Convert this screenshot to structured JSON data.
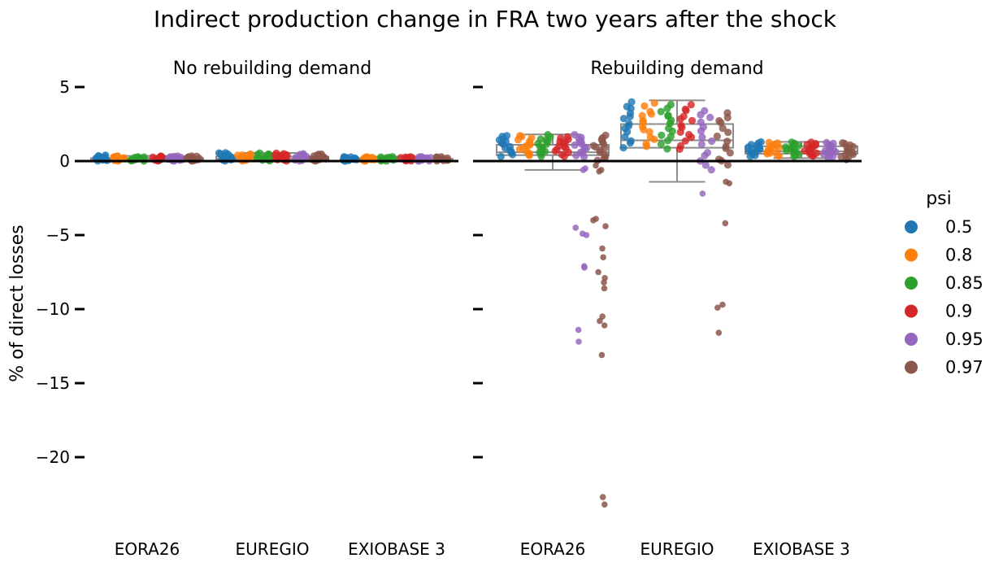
{
  "chart_data": {
    "type": "scatter",
    "title": "Indirect production change in FRA two years after the shock",
    "ylabel": "% of direct losses",
    "ylim": [
      -24.5,
      6
    ],
    "yticks": [
      5,
      0,
      -5,
      -10,
      -15,
      -20
    ],
    "ytick_labels": [
      "5",
      "0",
      "−5",
      "−10",
      "−15",
      "−20"
    ],
    "categories": [
      "EORA26",
      "EUREGIO",
      "EXIOBASE 3"
    ],
    "legend": {
      "title": "psi",
      "placement": "right",
      "entries": [
        {
          "label": "0.5",
          "color": "#1f77b4"
        },
        {
          "label": "0.8",
          "color": "#ff7f0e"
        },
        {
          "label": "0.85",
          "color": "#2ca02c"
        },
        {
          "label": "0.9",
          "color": "#d62728"
        },
        {
          "label": "0.95",
          "color": "#9467bd"
        },
        {
          "label": "0.97",
          "color": "#8c564b"
        }
      ]
    },
    "panels": [
      {
        "title": "No rebuilding demand",
        "groups": {
          "EORA26": {
            "box": {
              "whislo": 0,
              "q1": 0.02,
              "median": 0.1,
              "q3": 0.2,
              "whishi": 0.35
            },
            "series": {
              "0.5": {
                "min": 0.0,
                "max": 0.4
              },
              "0.8": {
                "min": 0.0,
                "max": 0.35
              },
              "0.85": {
                "min": 0.0,
                "max": 0.3
              },
              "0.9": {
                "min": 0.0,
                "max": 0.35
              },
              "0.95": {
                "min": 0.0,
                "max": 0.35
              },
              "0.97": {
                "min": 0.0,
                "max": 0.35
              }
            }
          },
          "EUREGIO": {
            "box": {
              "whislo": 0,
              "q1": 0.05,
              "median": 0.15,
              "q3": 0.3,
              "whishi": 0.55
            },
            "series": {
              "0.5": {
                "min": 0.0,
                "max": 0.6
              },
              "0.8": {
                "min": 0.0,
                "max": 0.5
              },
              "0.85": {
                "min": 0.0,
                "max": 0.55
              },
              "0.9": {
                "min": 0.0,
                "max": 0.55
              },
              "0.95": {
                "min": 0.0,
                "max": 0.5
              },
              "0.97": {
                "min": 0.0,
                "max": 0.5
              }
            }
          },
          "EXIOBASE 3": {
            "box": {
              "whislo": 0,
              "q1": 0.02,
              "median": 0.08,
              "q3": 0.15,
              "whishi": 0.3
            },
            "series": {
              "0.5": {
                "min": 0.0,
                "max": 0.3
              },
              "0.8": {
                "min": 0.0,
                "max": 0.3
              },
              "0.85": {
                "min": 0.0,
                "max": 0.3
              },
              "0.9": {
                "min": 0.0,
                "max": 0.3
              },
              "0.95": {
                "min": 0.0,
                "max": 0.3
              },
              "0.97": {
                "min": 0.0,
                "max": 0.3
              }
            }
          }
        }
      },
      {
        "title": "Rebuilding demand",
        "groups": {
          "EORA26": {
            "box": {
              "whislo": -0.6,
              "q1": 0.4,
              "median": 0.6,
              "q3": 1.1,
              "whishi": 1.8
            },
            "series": {
              "0.5": {
                "min": 0.3,
                "max": 1.8
              },
              "0.8": {
                "min": 0.3,
                "max": 1.8
              },
              "0.85": {
                "min": 0.3,
                "max": 1.8
              },
              "0.9": {
                "min": 0.3,
                "max": 1.7
              },
              "0.95": {
                "min": 0.2,
                "max": 1.8,
                "outliers": [
                  -0.6,
                  -0.5,
                  -4.5,
                  -4.9,
                  -5.0,
                  -7.1,
                  -7.2,
                  -11.4,
                  -12.2
                ]
              },
              "0.97": {
                "min": 0.0,
                "max": 1.8,
                "outliers": [
                  -0.3,
                  -0.6,
                  -0.7,
                  -3.9,
                  -4.0,
                  -4.4,
                  -5.9,
                  -6.5,
                  -7.5,
                  -7.9,
                  -8.2,
                  -8.6,
                  -10.5,
                  -10.8,
                  -11.1,
                  -13.1,
                  -22.7,
                  -23.2
                ]
              }
            }
          },
          "EUREGIO": {
            "box": {
              "whislo": -1.4,
              "q1": 0.9,
              "median": 1.4,
              "q3": 2.5,
              "whishi": 4.1
            },
            "series": {
              "0.5": {
                "min": 0.9,
                "max": 4.1
              },
              "0.8": {
                "min": 0.9,
                "max": 4.0
              },
              "0.85": {
                "min": 0.8,
                "max": 4.0
              },
              "0.9": {
                "min": 0.8,
                "max": 3.9
              },
              "0.95": {
                "min": -0.7,
                "max": 3.7,
                "outliers": [
                  -2.2
                ]
              },
              "0.97": {
                "min": -0.5,
                "max": 3.5,
                "outliers": [
                  -1.4,
                  -1.5,
                  -4.2,
                  -9.7,
                  -9.9,
                  -11.6
                ]
              }
            }
          },
          "EXIOBASE 3": {
            "box": {
              "whislo": 0.2,
              "q1": 0.5,
              "median": 0.65,
              "q3": 1.0,
              "whishi": 1.3
            },
            "series": {
              "0.5": {
                "min": 0.3,
                "max": 1.3
              },
              "0.8": {
                "min": 0.3,
                "max": 1.3
              },
              "0.85": {
                "min": 0.3,
                "max": 1.3
              },
              "0.9": {
                "min": 0.3,
                "max": 1.3
              },
              "0.95": {
                "min": 0.2,
                "max": 1.3
              },
              "0.97": {
                "min": 0.1,
                "max": 1.3
              }
            }
          }
        }
      }
    ]
  }
}
